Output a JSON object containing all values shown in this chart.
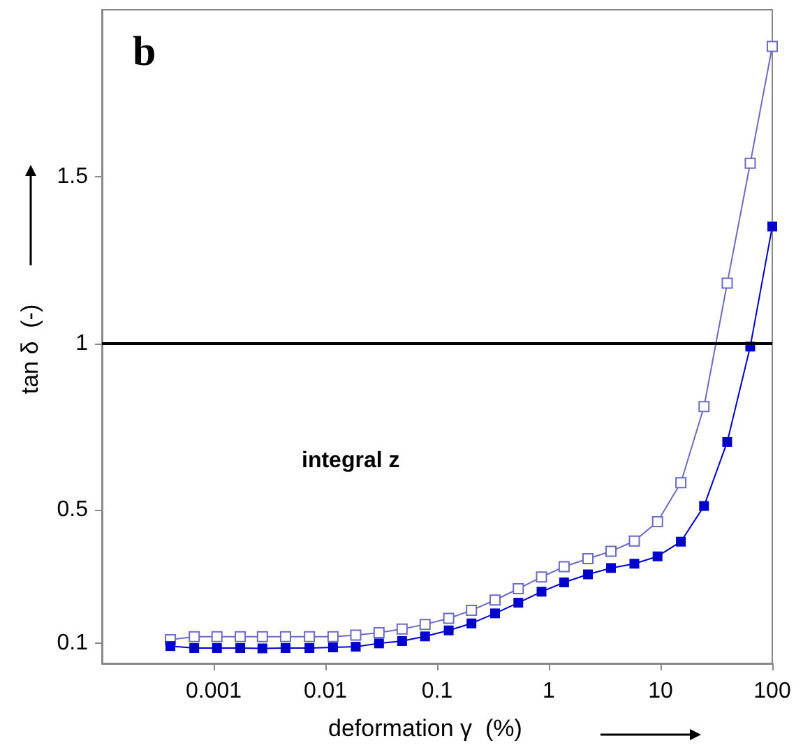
{
  "chart_data": {
    "type": "line",
    "xlabel": "deformation γ  (%)",
    "ylabel": "tan δ  (-)",
    "annotations": [
      "b",
      "integral z"
    ],
    "x": [
      0.00041,
      0.00067,
      0.00107,
      0.00173,
      0.00273,
      0.0044,
      0.0072,
      0.0117,
      0.0187,
      0.0302,
      0.0486,
      0.078,
      0.127,
      0.203,
      0.33,
      0.533,
      0.86,
      1.37,
      2.24,
      3.6,
      5.83,
      9.4,
      15.2,
      24.5,
      39.5,
      63.5,
      100
    ],
    "series": [
      {
        "color": "#6b6bc4",
        "values": [
          0.111,
          0.12,
          0.12,
          0.12,
          0.12,
          0.12,
          0.12,
          0.12,
          0.125,
          0.132,
          0.143,
          0.157,
          0.175,
          0.199,
          0.23,
          0.264,
          0.299,
          0.33,
          0.354,
          0.376,
          0.407,
          0.465,
          0.582,
          0.81,
          1.18,
          1.54,
          1.89
        ]
      },
      {
        "color": "#0000cc",
        "values": [
          0.092,
          0.086,
          0.086,
          0.086,
          0.085,
          0.086,
          0.086,
          0.088,
          0.09,
          0.1,
          0.107,
          0.121,
          0.139,
          0.16,
          0.19,
          0.222,
          0.255,
          0.283,
          0.307,
          0.326,
          0.339,
          0.361,
          0.405,
          0.512,
          0.704,
          0.99,
          1.35
        ]
      }
    ],
    "log": "x",
    "xlim": [
      0.0001,
      100
    ],
    "xticks": [
      0.001,
      0.01,
      0.1,
      1,
      10,
      100
    ],
    "ylim": [
      0.04,
      2
    ],
    "yticks": [
      0.1,
      0.5,
      1,
      1.5
    ],
    "ref_lines": [
      {
        "axis": "y",
        "value": 1,
        "color": "#000000"
      }
    ],
    "marker": "square",
    "line_style": "solid",
    "grid": false
  }
}
